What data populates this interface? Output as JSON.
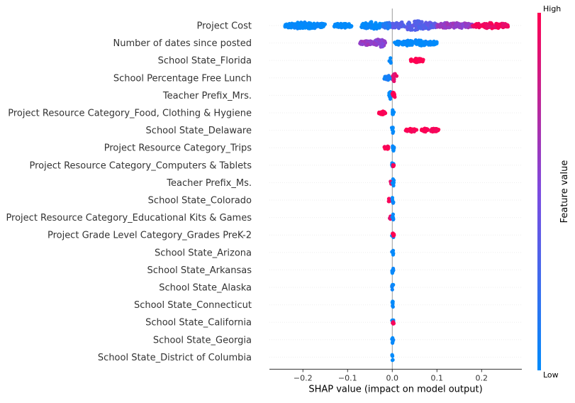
{
  "chart_data": {
    "type": "scatter",
    "subtype": "shap-beeswarm",
    "xlabel": "SHAP value (impact on model output)",
    "xlim": [
      -0.275,
      0.29
    ],
    "xticks": [
      -0.2,
      -0.1,
      0.0,
      0.1,
      0.2
    ],
    "xtick_labels": [
      "−0.2",
      "−0.1",
      "0.0",
      "0.1",
      "0.2"
    ],
    "colorbar": {
      "title": "Feature value",
      "high_label": "High",
      "low_label": "Low",
      "low_color": "#008bfb",
      "mid_color": "#7c4be0",
      "high_color": "#ff0051"
    },
    "features": [
      {
        "name": "Project Cost",
        "clusters": [
          {
            "from": -0.24,
            "to": -0.15,
            "color": 0.0,
            "spread": 0.55
          },
          {
            "from": -0.13,
            "to": -0.09,
            "color": 0.0,
            "spread": 0.35
          },
          {
            "from": -0.07,
            "to": -0.02,
            "color": 0.0,
            "spread": 0.6
          },
          {
            "from": -0.02,
            "to": 0.0,
            "color": 0.15,
            "spread": 0.5
          },
          {
            "from": 0.0,
            "to": 0.1,
            "color": 0.35,
            "spread": 0.8
          },
          {
            "from": 0.1,
            "to": 0.18,
            "color": 0.6,
            "spread": 0.5
          },
          {
            "from": 0.18,
            "to": 0.26,
            "color": 0.95,
            "spread": 0.45
          }
        ]
      },
      {
        "name": "Number of dates since posted",
        "clusters": [
          {
            "from": -0.075,
            "to": -0.04,
            "color": 0.6,
            "spread": 0.3
          },
          {
            "from": -0.04,
            "to": -0.015,
            "color": 0.55,
            "spread": 0.75
          },
          {
            "from": 0.005,
            "to": 0.1,
            "color": 0.0,
            "spread": 0.45
          }
        ]
      },
      {
        "name": "School State_Florida",
        "clusters": [
          {
            "from": -0.007,
            "to": -0.002,
            "color": 0.0,
            "spread": 0.55
          },
          {
            "from": 0.04,
            "to": 0.07,
            "color": 1.0,
            "spread": 0.25
          }
        ]
      },
      {
        "name": "School Percentage Free Lunch",
        "clusters": [
          {
            "from": -0.018,
            "to": 0.0,
            "color": 0.1,
            "spread": 0.3
          },
          {
            "from": 0.0,
            "to": 0.01,
            "color": 0.9,
            "spread": 0.75
          }
        ]
      },
      {
        "name": "Teacher Prefix_Mrs.",
        "clusters": [
          {
            "from": -0.008,
            "to": 0.0,
            "color": 0.0,
            "spread": 0.6
          },
          {
            "from": 0.0,
            "to": 0.006,
            "color": 1.0,
            "spread": 0.6
          }
        ]
      },
      {
        "name": "Project Resource Category_Food, Clothing & Hygiene",
        "clusters": [
          {
            "from": -0.03,
            "to": -0.015,
            "color": 1.0,
            "spread": 0.2
          },
          {
            "from": 0.0,
            "to": 0.004,
            "color": 0.0,
            "spread": 0.6
          }
        ]
      },
      {
        "name": "School State_Delaware",
        "clusters": [
          {
            "from": -0.002,
            "to": 0.003,
            "color": 0.0,
            "spread": 0.6
          },
          {
            "from": 0.03,
            "to": 0.055,
            "color": 1.0,
            "spread": 0.22
          },
          {
            "from": 0.065,
            "to": 0.08,
            "color": 1.0,
            "spread": 0.22
          },
          {
            "from": 0.085,
            "to": 0.105,
            "color": 1.0,
            "spread": 0.22
          }
        ]
      },
      {
        "name": "Project Resource Category_Trips",
        "clusters": [
          {
            "from": -0.018,
            "to": -0.008,
            "color": 1.0,
            "spread": 0.2
          },
          {
            "from": -0.001,
            "to": 0.004,
            "color": 0.0,
            "spread": 0.6
          }
        ]
      },
      {
        "name": "Project Resource Category_Computers & Tablets",
        "clusters": [
          {
            "from": -0.001,
            "to": 0.003,
            "color": 0.0,
            "spread": 0.6
          },
          {
            "from": 0.001,
            "to": 0.004,
            "color": 1.0,
            "spread": 0.2
          }
        ]
      },
      {
        "name": "Teacher Prefix_Ms.",
        "clusters": [
          {
            "from": -0.005,
            "to": 0.0,
            "color": 0.9,
            "spread": 0.2
          },
          {
            "from": 0.0,
            "to": 0.004,
            "color": 0.0,
            "spread": 0.6
          }
        ]
      },
      {
        "name": "School State_Colorado",
        "clusters": [
          {
            "from": -0.009,
            "to": -0.004,
            "color": 1.0,
            "spread": 0.2
          },
          {
            "from": -0.001,
            "to": 0.003,
            "color": 0.0,
            "spread": 0.6
          }
        ]
      },
      {
        "name": "Project Resource Category_Educational Kits & Games",
        "clusters": [
          {
            "from": -0.006,
            "to": -0.002,
            "color": 0.9,
            "spread": 0.15
          },
          {
            "from": -0.001,
            "to": 0.003,
            "color": 0.0,
            "spread": 0.6
          }
        ]
      },
      {
        "name": "Project Grade Level Category_Grades PreK-2",
        "clusters": [
          {
            "from": -0.001,
            "to": 0.003,
            "color": 0.0,
            "spread": 0.6
          },
          {
            "from": 0.0,
            "to": 0.004,
            "color": 1.0,
            "spread": 0.25
          }
        ]
      },
      {
        "name": "School State_Arizona",
        "clusters": [
          {
            "from": -0.001,
            "to": 0.003,
            "color": 0.0,
            "spread": 0.6
          }
        ]
      },
      {
        "name": "School State_Arkansas",
        "clusters": [
          {
            "from": -0.001,
            "to": 0.003,
            "color": 0.0,
            "spread": 0.6
          }
        ]
      },
      {
        "name": "School State_Alaska",
        "clusters": [
          {
            "from": -0.001,
            "to": 0.003,
            "color": 0.0,
            "spread": 0.6
          }
        ]
      },
      {
        "name": "School State_Connecticut",
        "clusters": [
          {
            "from": -0.001,
            "to": 0.003,
            "color": 0.0,
            "spread": 0.6
          }
        ]
      },
      {
        "name": "School State_California",
        "clusters": [
          {
            "from": -0.001,
            "to": 0.003,
            "color": 0.0,
            "spread": 0.6
          },
          {
            "from": 0.0,
            "to": 0.004,
            "color": 1.0,
            "spread": 0.2
          }
        ]
      },
      {
        "name": "School State_Georgia",
        "clusters": [
          {
            "from": -0.001,
            "to": 0.003,
            "color": 0.0,
            "spread": 0.6
          }
        ]
      },
      {
        "name": "School State_District of Columbia",
        "clusters": [
          {
            "from": -0.001,
            "to": 0.003,
            "color": 0.0,
            "spread": 0.6
          }
        ]
      }
    ]
  }
}
